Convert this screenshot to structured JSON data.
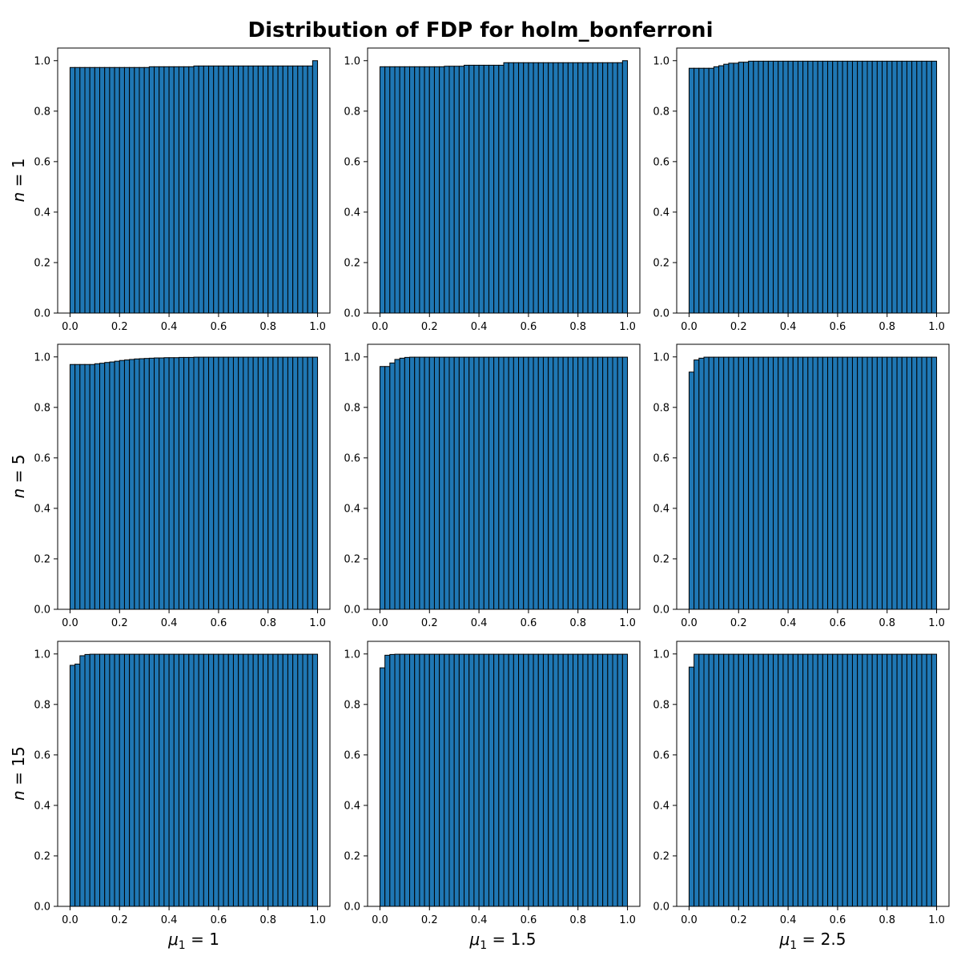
{
  "title": "Distribution of FDP for holm_bonferroni",
  "row_labels": [
    "n = 1",
    "n = 5",
    "n = 15"
  ],
  "col_labels": [
    "μ1 = 1",
    "μ1 = 1.5",
    "μ1 = 2.5"
  ],
  "colors": {
    "bar_fill": "#1f77b4",
    "bar_edge": "#000000"
  },
  "chart_data": [
    {
      "type": "bar",
      "n": 1,
      "mu1": 1,
      "bins": 50,
      "xlim": [
        -0.05,
        1.05
      ],
      "ylim": [
        0,
        1.05
      ],
      "xticks": [
        "0.0",
        "0.2",
        "0.4",
        "0.6",
        "0.8",
        "1.0"
      ],
      "yticks": [
        "0.0",
        "0.2",
        "0.4",
        "0.6",
        "0.8",
        "1.0"
      ],
      "values": [
        0.973,
        0.973,
        0.973,
        0.973,
        0.973,
        0.973,
        0.973,
        0.973,
        0.973,
        0.973,
        0.973,
        0.973,
        0.973,
        0.973,
        0.973,
        0.973,
        0.976,
        0.976,
        0.976,
        0.976,
        0.976,
        0.976,
        0.976,
        0.976,
        0.976,
        0.979,
        0.979,
        0.979,
        0.979,
        0.979,
        0.979,
        0.979,
        0.979,
        0.979,
        0.979,
        0.979,
        0.979,
        0.979,
        0.979,
        0.979,
        0.979,
        0.979,
        0.979,
        0.979,
        0.979,
        0.979,
        0.979,
        0.979,
        0.979,
        1.0
      ]
    },
    {
      "type": "bar",
      "n": 1,
      "mu1": 1.5,
      "bins": 50,
      "xlim": [
        -0.05,
        1.05
      ],
      "ylim": [
        0,
        1.05
      ],
      "xticks": [
        "0.0",
        "0.2",
        "0.4",
        "0.6",
        "0.8",
        "1.0"
      ],
      "yticks": [
        "0.0",
        "0.2",
        "0.4",
        "0.6",
        "0.8",
        "1.0"
      ],
      "values": [
        0.976,
        0.976,
        0.976,
        0.976,
        0.976,
        0.976,
        0.976,
        0.976,
        0.976,
        0.976,
        0.976,
        0.976,
        0.976,
        0.978,
        0.978,
        0.978,
        0.978,
        0.982,
        0.982,
        0.982,
        0.982,
        0.982,
        0.982,
        0.982,
        0.982,
        0.992,
        0.992,
        0.992,
        0.992,
        0.992,
        0.992,
        0.992,
        0.992,
        0.992,
        0.992,
        0.992,
        0.992,
        0.992,
        0.992,
        0.992,
        0.992,
        0.992,
        0.992,
        0.992,
        0.992,
        0.992,
        0.992,
        0.992,
        0.992,
        1.0
      ]
    },
    {
      "type": "bar",
      "n": 1,
      "mu1": 2.5,
      "bins": 50,
      "xlim": [
        -0.05,
        1.05
      ],
      "ylim": [
        0,
        1.05
      ],
      "xticks": [
        "0.0",
        "0.2",
        "0.4",
        "0.6",
        "0.8",
        "1.0"
      ],
      "yticks": [
        "0.0",
        "0.2",
        "0.4",
        "0.6",
        "0.8",
        "1.0"
      ],
      "values": [
        0.97,
        0.97,
        0.97,
        0.97,
        0.97,
        0.976,
        0.98,
        0.986,
        0.99,
        0.99,
        0.994,
        0.994,
        0.998,
        0.998,
        0.998,
        0.998,
        0.998,
        0.998,
        0.998,
        0.998,
        0.998,
        0.998,
        0.998,
        0.998,
        0.998,
        0.998,
        0.998,
        0.998,
        0.998,
        0.998,
        0.998,
        0.998,
        0.998,
        0.998,
        0.998,
        0.998,
        0.998,
        0.998,
        0.998,
        0.998,
        0.998,
        0.998,
        0.998,
        0.998,
        0.998,
        0.998,
        0.998,
        0.998,
        0.998,
        0.998
      ]
    },
    {
      "type": "bar",
      "n": 5,
      "mu1": 1,
      "bins": 50,
      "xlim": [
        -0.05,
        1.05
      ],
      "ylim": [
        0,
        1.05
      ],
      "xticks": [
        "0.0",
        "0.2",
        "0.4",
        "0.6",
        "0.8",
        "1.0"
      ],
      "yticks": [
        "0.0",
        "0.2",
        "0.4",
        "0.6",
        "0.8",
        "1.0"
      ],
      "values": [
        0.97,
        0.97,
        0.97,
        0.97,
        0.97,
        0.973,
        0.975,
        0.978,
        0.98,
        0.983,
        0.986,
        0.988,
        0.99,
        0.992,
        0.993,
        0.994,
        0.995,
        0.996,
        0.996,
        0.997,
        0.997,
        0.997,
        0.998,
        0.998,
        0.998,
        0.999,
        0.999,
        0.999,
        0.999,
        0.999,
        0.999,
        0.999,
        0.999,
        0.999,
        0.999,
        0.999,
        0.999,
        0.999,
        0.999,
        0.999,
        0.999,
        0.999,
        0.999,
        0.999,
        0.999,
        0.999,
        0.999,
        0.999,
        0.999,
        0.999
      ]
    },
    {
      "type": "bar",
      "n": 5,
      "mu1": 1.5,
      "bins": 50,
      "xlim": [
        -0.05,
        1.05
      ],
      "ylim": [
        0,
        1.05
      ],
      "xticks": [
        "0.0",
        "0.2",
        "0.4",
        "0.6",
        "0.8",
        "1.0"
      ],
      "yticks": [
        "0.0",
        "0.2",
        "0.4",
        "0.6",
        "0.8",
        "1.0"
      ],
      "values": [
        0.962,
        0.962,
        0.976,
        0.99,
        0.995,
        0.998,
        0.999,
        0.999,
        0.999,
        0.999,
        0.999,
        0.999,
        0.999,
        0.999,
        0.999,
        0.999,
        0.999,
        0.999,
        0.999,
        0.999,
        0.999,
        0.999,
        0.999,
        0.999,
        0.999,
        0.999,
        0.999,
        0.999,
        0.999,
        0.999,
        0.999,
        0.999,
        0.999,
        0.999,
        0.999,
        0.999,
        0.999,
        0.999,
        0.999,
        0.999,
        0.999,
        0.999,
        0.999,
        0.999,
        0.999,
        0.999,
        0.999,
        0.999,
        0.999,
        0.999
      ]
    },
    {
      "type": "bar",
      "n": 5,
      "mu1": 2.5,
      "bins": 50,
      "xlim": [
        -0.05,
        1.05
      ],
      "ylim": [
        0,
        1.05
      ],
      "xticks": [
        "0.0",
        "0.2",
        "0.4",
        "0.6",
        "0.8",
        "1.0"
      ],
      "yticks": [
        "0.0",
        "0.2",
        "0.4",
        "0.6",
        "0.8",
        "1.0"
      ],
      "values": [
        0.94,
        0.988,
        0.995,
        0.999,
        0.999,
        0.999,
        0.999,
        0.999,
        0.999,
        0.999,
        0.999,
        0.999,
        0.999,
        0.999,
        0.999,
        0.999,
        0.999,
        0.999,
        0.999,
        0.999,
        0.999,
        0.999,
        0.999,
        0.999,
        0.999,
        0.999,
        0.999,
        0.999,
        0.999,
        0.999,
        0.999,
        0.999,
        0.999,
        0.999,
        0.999,
        0.999,
        0.999,
        0.999,
        0.999,
        0.999,
        0.999,
        0.999,
        0.999,
        0.999,
        0.999,
        0.999,
        0.999,
        0.999,
        0.999,
        0.999
      ]
    },
    {
      "type": "bar",
      "n": 15,
      "mu1": 1,
      "bins": 50,
      "xlim": [
        -0.05,
        1.05
      ],
      "ylim": [
        0,
        1.05
      ],
      "xticks": [
        "0.0",
        "0.2",
        "0.4",
        "0.6",
        "0.8",
        "1.0"
      ],
      "yticks": [
        "0.0",
        "0.2",
        "0.4",
        "0.6",
        "0.8",
        "1.0"
      ],
      "values": [
        0.955,
        0.96,
        0.993,
        0.998,
        0.999,
        0.999,
        0.999,
        0.999,
        0.999,
        0.999,
        0.999,
        0.999,
        0.999,
        0.999,
        0.999,
        0.999,
        0.999,
        0.999,
        0.999,
        0.999,
        0.999,
        0.999,
        0.999,
        0.999,
        0.999,
        0.999,
        0.999,
        0.999,
        0.999,
        0.999,
        0.999,
        0.999,
        0.999,
        0.999,
        0.999,
        0.999,
        0.999,
        0.999,
        0.999,
        0.999,
        0.999,
        0.999,
        0.999,
        0.999,
        0.999,
        0.999,
        0.999,
        0.999,
        0.999,
        0.999
      ]
    },
    {
      "type": "bar",
      "n": 15,
      "mu1": 1.5,
      "bins": 50,
      "xlim": [
        -0.05,
        1.05
      ],
      "ylim": [
        0,
        1.05
      ],
      "xticks": [
        "0.0",
        "0.2",
        "0.4",
        "0.6",
        "0.8",
        "1.0"
      ],
      "yticks": [
        "0.0",
        "0.2",
        "0.4",
        "0.6",
        "0.8",
        "1.0"
      ],
      "values": [
        0.945,
        0.995,
        0.998,
        0.999,
        0.999,
        0.999,
        0.999,
        0.999,
        0.999,
        0.999,
        0.999,
        0.999,
        0.999,
        0.999,
        0.999,
        0.999,
        0.999,
        0.999,
        0.999,
        0.999,
        0.999,
        0.999,
        0.999,
        0.999,
        0.999,
        0.999,
        0.999,
        0.999,
        0.999,
        0.999,
        0.999,
        0.999,
        0.999,
        0.999,
        0.999,
        0.999,
        0.999,
        0.999,
        0.999,
        0.999,
        0.999,
        0.999,
        0.999,
        0.999,
        0.999,
        0.999,
        0.999,
        0.999,
        0.999,
        0.999
      ]
    },
    {
      "type": "bar",
      "n": 15,
      "mu1": 2.5,
      "bins": 50,
      "xlim": [
        -0.05,
        1.05
      ],
      "ylim": [
        0,
        1.05
      ],
      "xticks": [
        "0.0",
        "0.2",
        "0.4",
        "0.6",
        "0.8",
        "1.0"
      ],
      "yticks": [
        "0.0",
        "0.2",
        "0.4",
        "0.6",
        "0.8",
        "1.0"
      ],
      "values": [
        0.948,
        0.999,
        0.999,
        0.999,
        0.999,
        0.999,
        0.999,
        0.999,
        0.999,
        0.999,
        0.999,
        0.999,
        0.999,
        0.999,
        0.999,
        0.999,
        0.999,
        0.999,
        0.999,
        0.999,
        0.999,
        0.999,
        0.999,
        0.999,
        0.999,
        0.999,
        0.999,
        0.999,
        0.999,
        0.999,
        0.999,
        0.999,
        0.999,
        0.999,
        0.999,
        0.999,
        0.999,
        0.999,
        0.999,
        0.999,
        0.999,
        0.999,
        0.999,
        0.999,
        0.999,
        0.999,
        0.999,
        0.999,
        0.999,
        0.999
      ]
    }
  ]
}
